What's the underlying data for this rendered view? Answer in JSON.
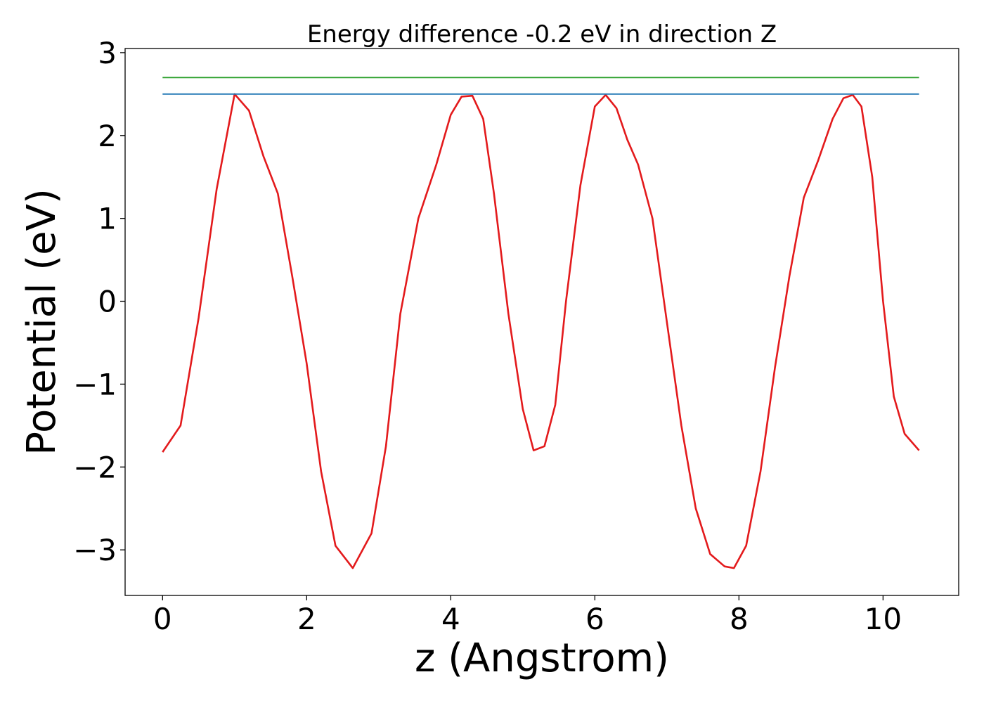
{
  "chart_data": {
    "type": "line",
    "title": "Energy difference -0.2 eV in direction Z",
    "xlabel": "z (Angstrom)",
    "ylabel": "Potential (eV)",
    "xlim": [
      -0.52,
      11.05
    ],
    "ylim": [
      -3.55,
      3.05
    ],
    "xticks": [
      0,
      2,
      4,
      6,
      8,
      10
    ],
    "xtick_labels": [
      "0",
      "2",
      "4",
      "6",
      "8",
      "10"
    ],
    "yticks": [
      -3,
      -2,
      -1,
      0,
      1,
      2,
      3
    ],
    "ytick_labels": [
      "−3",
      "−2",
      "−1",
      "0",
      "1",
      "2",
      "3"
    ],
    "grid": false,
    "legend": "none",
    "series": [
      {
        "color": "#e31a1c",
        "x": [
          0.0,
          0.25,
          0.5,
          0.75,
          1.0,
          1.2,
          1.4,
          1.6,
          1.8,
          2.0,
          2.2,
          2.4,
          2.64,
          2.9,
          3.1,
          3.3,
          3.55,
          3.8,
          4.0,
          4.15,
          4.3,
          4.45,
          4.6,
          4.8,
          5.0,
          5.15,
          5.3,
          5.45,
          5.6,
          5.8,
          6.0,
          6.15,
          6.3,
          6.45,
          6.6,
          6.8,
          7.0,
          7.2,
          7.4,
          7.6,
          7.8,
          7.93,
          8.1,
          8.3,
          8.5,
          8.7,
          8.9,
          9.1,
          9.3,
          9.45,
          9.58,
          9.7,
          9.85,
          10.0,
          10.15,
          10.3,
          10.5
        ],
        "y": [
          -1.82,
          -1.5,
          -0.2,
          1.35,
          2.5,
          2.3,
          1.75,
          1.3,
          0.3,
          -0.75,
          -2.05,
          -2.95,
          -3.22,
          -2.8,
          -1.75,
          -0.15,
          1.0,
          1.65,
          2.25,
          2.47,
          2.48,
          2.2,
          1.3,
          -0.15,
          -1.3,
          -1.8,
          -1.75,
          -1.25,
          0.0,
          1.4,
          2.35,
          2.49,
          2.33,
          1.95,
          1.65,
          1.0,
          -0.25,
          -1.5,
          -2.5,
          -3.05,
          -3.2,
          -3.22,
          -2.95,
          -2.05,
          -0.8,
          0.3,
          1.25,
          1.7,
          2.2,
          2.45,
          2.49,
          2.35,
          1.5,
          0.0,
          -1.15,
          -1.6,
          -1.8
        ]
      },
      {
        "color": "#1f77b4",
        "x": [
          0.0,
          10.5
        ],
        "y": [
          2.5,
          2.5
        ]
      },
      {
        "color": "#2ca02c",
        "x": [
          0.0,
          10.5
        ],
        "y": [
          2.7,
          2.7
        ]
      }
    ]
  }
}
